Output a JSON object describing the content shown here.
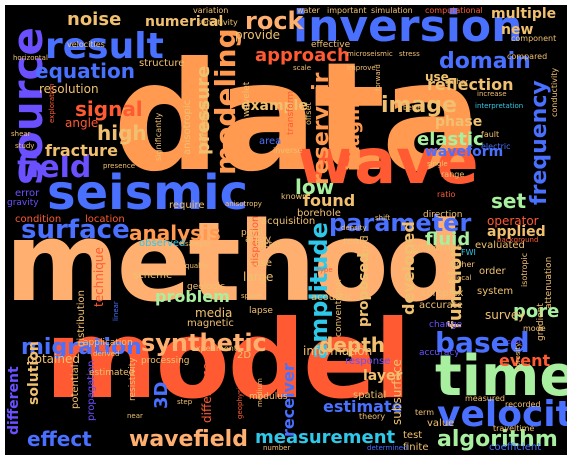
{
  "background": "#000000",
  "palette": {
    "orange": "#ff9a50",
    "peach": "#ffb070",
    "red": "#ff5a32",
    "purple": "#6a50ff",
    "blue": "#4a70ff",
    "cyan": "#30c8e8",
    "teal": "#40d8c8",
    "green": "#a8f0a0",
    "gold": "#f0c070",
    "deepred": "#e02810"
  },
  "words": [
    {
      "text": "data",
      "color": "#ff9a50",
      "weight": 1.0
    },
    {
      "text": "method",
      "color": "#ffb070",
      "weight": 0.98
    },
    {
      "text": "model",
      "color": "#ff5a32",
      "weight": 0.95
    },
    {
      "text": "wave",
      "color": "#ff5a32",
      "weight": 0.72
    },
    {
      "text": "seismic",
      "color": "#4a70ff",
      "weight": 0.7
    },
    {
      "text": "inversion",
      "color": "#4a70ff",
      "weight": 0.62
    },
    {
      "text": "time",
      "color": "#a8f0a0",
      "weight": 0.62
    },
    {
      "text": "source",
      "color": "#6a50ff",
      "weight": 0.55
    },
    {
      "text": "result",
      "color": "#4a70ff",
      "weight": 0.5
    },
    {
      "text": "velocity",
      "color": "#4a70ff",
      "weight": 0.45
    },
    {
      "text": "field",
      "color": "#6a50ff",
      "weight": 0.42
    },
    {
      "text": "modeling",
      "color": "#ff9a50",
      "weight": 0.4
    },
    {
      "text": "surface",
      "color": "#4a70ff",
      "weight": 0.38
    },
    {
      "text": "parameter",
      "color": "#4a70ff",
      "weight": 0.36
    },
    {
      "text": "amplitude",
      "color": "#30c8e8",
      "weight": 0.36
    },
    {
      "text": "synthetic",
      "color": "#ffb070",
      "weight": 0.35
    },
    {
      "text": "based",
      "color": "#4a70ff",
      "weight": 0.35
    },
    {
      "text": "wavefield",
      "color": "#ffb070",
      "weight": 0.32
    },
    {
      "text": "measurement",
      "color": "#30c8e8",
      "weight": 0.32
    },
    {
      "text": "algorithm",
      "color": "#a8f0a0",
      "weight": 0.32
    },
    {
      "text": "frequency",
      "color": "#4a70ff",
      "weight": 0.32
    },
    {
      "text": "migration",
      "color": "#4a70ff",
      "weight": 0.3
    },
    {
      "text": "rock",
      "color": "#ffb070",
      "weight": 0.3
    },
    {
      "text": "domain",
      "color": "#4a70ff",
      "weight": 0.3
    },
    {
      "text": "equation",
      "color": "#4a70ff",
      "weight": 0.3
    },
    {
      "text": "approach",
      "color": "#ff5a32",
      "weight": 0.28
    },
    {
      "text": "image",
      "color": "#f0c070",
      "weight": 0.28
    },
    {
      "text": "reservoir",
      "color": "#ff9a50",
      "weight": 0.28
    },
    {
      "text": "signal",
      "color": "#ff5a32",
      "weight": 0.26
    },
    {
      "text": "high",
      "color": "#f0c070",
      "weight": 0.26
    },
    {
      "text": "imaging",
      "color": "#ff9a50",
      "weight": 0.26
    },
    {
      "text": "analysis",
      "color": "#ff9a50",
      "weight": 0.26
    },
    {
      "text": "low",
      "color": "#a8f0a0",
      "weight": 0.26
    },
    {
      "text": "set",
      "color": "#a8f0a0",
      "weight": 0.26
    },
    {
      "text": "depth",
      "color": "#f0c070",
      "weight": 0.26
    },
    {
      "text": "effect",
      "color": "#4a70ff",
      "weight": 0.26
    },
    {
      "text": "noise",
      "color": "#f0c070",
      "weight": 0.24
    },
    {
      "text": "reflection",
      "color": "#f0c070",
      "weight": 0.24
    },
    {
      "text": "elastic",
      "color": "#a8f0a0",
      "weight": 0.24
    },
    {
      "text": "fracture",
      "color": "#f0c070",
      "weight": 0.24
    },
    {
      "text": "pressure",
      "color": "#f0c070",
      "weight": 0.24
    },
    {
      "text": "pore",
      "color": "#a8f0a0",
      "weight": 0.24
    },
    {
      "text": "fluid",
      "color": "#a8f0a0",
      "weight": 0.24
    },
    {
      "text": "function",
      "color": "#f0c070",
      "weight": 0.24
    },
    {
      "text": "problem",
      "color": "#a8f0a0",
      "weight": 0.24
    },
    {
      "text": "receiver",
      "color": "#4a70ff",
      "weight": 0.24
    },
    {
      "text": "estimate",
      "color": "#4a70ff",
      "weight": 0.24
    },
    {
      "text": "developed",
      "color": "#f0c070",
      "weight": 0.24
    },
    {
      "text": "found",
      "color": "#f0c070",
      "weight": 0.22
    },
    {
      "text": "event",
      "color": "#ff5a32",
      "weight": 0.22
    },
    {
      "text": "3D",
      "color": "#4a70ff",
      "weight": 0.22
    },
    {
      "text": "example",
      "color": "#f0c070",
      "weight": 0.2
    },
    {
      "text": "phase",
      "color": "#f0c070",
      "weight": 0.2
    },
    {
      "text": "waveform",
      "color": "#4a70ff",
      "weight": 0.2
    },
    {
      "text": "resolution",
      "color": "#f0c070",
      "weight": 0.2
    },
    {
      "text": "numerical",
      "color": "#f0c070",
      "weight": 0.2
    },
    {
      "text": "new",
      "color": "#f0c070",
      "weight": 0.2
    },
    {
      "text": "multiple",
      "color": "#f0c070",
      "weight": 0.2
    },
    {
      "text": "use",
      "color": "#f0c070",
      "weight": 0.2
    },
    {
      "text": "provide",
      "color": "#f0c070",
      "weight": 0.18
    },
    {
      "text": "layer",
      "color": "#f0c070",
      "weight": 0.18
    },
    {
      "text": "different",
      "color": "#6a50ff",
      "weight": 0.2
    },
    {
      "text": "solution",
      "color": "#f0c070",
      "weight": 0.2
    },
    {
      "text": "obtained",
      "color": "#f0c070",
      "weight": 0.18
    },
    {
      "text": "information",
      "color": "#f0c070",
      "weight": 0.18
    },
    {
      "text": "applied",
      "color": "#f0c070",
      "weight": 0.2
    },
    {
      "text": "survey",
      "color": "#f0c070",
      "weight": 0.18
    },
    {
      "text": "proposed",
      "color": "#f0c070",
      "weight": 0.2
    },
    {
      "text": "subsurface",
      "color": "#f0c070",
      "weight": 0.18
    },
    {
      "text": "technique",
      "color": "#ff5a32",
      "weight": 0.16
    },
    {
      "text": "media",
      "color": "#f0c070",
      "weight": 0.18
    },
    {
      "text": "difference",
      "color": "#ff5a32",
      "weight": 0.16
    },
    {
      "text": "operator",
      "color": "#ff5a32",
      "weight": 0.16
    },
    {
      "text": "structure",
      "color": "#f0c070",
      "weight": 0.14
    },
    {
      "text": "scheme",
      "color": "#f0c070",
      "weight": 0.14
    },
    {
      "text": "system",
      "color": "#f0c070",
      "weight": 0.14
    },
    {
      "text": "order",
      "color": "#f0c070",
      "weight": 0.14
    },
    {
      "text": "effective",
      "color": "#f0c070",
      "weight": 0.12
    },
    {
      "text": "dispersion",
      "color": "#ff5a32",
      "weight": 0.12
    },
    {
      "text": "acquisition",
      "color": "#f0c070",
      "weight": 0.12
    },
    {
      "text": "observed",
      "color": "#30c8e8",
      "weight": 0.12
    },
    {
      "text": "condition",
      "color": "#ff5a32",
      "weight": 0.12
    },
    {
      "text": "error",
      "color": "#6a50ff",
      "weight": 0.12
    },
    {
      "text": "location",
      "color": "#ff5a32",
      "weight": 0.12
    },
    {
      "text": "distribution",
      "color": "#f0c070",
      "weight": 0.12
    },
    {
      "text": "potential",
      "color": "#f0c070",
      "weight": 0.12
    },
    {
      "text": "propagation",
      "color": "#6a50ff",
      "weight": 0.12
    },
    {
      "text": "angle",
      "color": "#ff5a32",
      "weight": 0.14
    },
    {
      "text": "gravity",
      "color": "#6a50ff",
      "weight": 0.1
    },
    {
      "text": "anisotropic",
      "color": "#f0c070",
      "weight": 0.1
    },
    {
      "text": "formation",
      "color": "#f0c070",
      "weight": 0.1
    },
    {
      "text": "wavelet",
      "color": "#f0c070",
      "weight": 0.1
    },
    {
      "text": "transform",
      "color": "#ff5a32",
      "weight": 0.1
    },
    {
      "text": "significantly",
      "color": "#f0c070",
      "weight": 0.09
    },
    {
      "text": "require",
      "color": "#f0c070",
      "weight": 0.1
    },
    {
      "text": "magnetic",
      "color": "#f0c070",
      "weight": 0.1
    },
    {
      "text": "geologic",
      "color": "#f0c070",
      "weight": 0.1
    },
    {
      "text": "estimated",
      "color": "#f0c070",
      "weight": 0.09
    },
    {
      "text": "application",
      "color": "#f0c070",
      "weight": 0.09
    },
    {
      "text": "processing",
      "color": "#f0c070",
      "weight": 0.09
    },
    {
      "text": "experiment",
      "color": "#f0c070",
      "weight": 0.09
    },
    {
      "text": "resistivity",
      "color": "#f0c070",
      "weight": 0.09
    },
    {
      "text": "modulus",
      "color": "#f0c070",
      "weight": 0.09
    },
    {
      "text": "spatial",
      "color": "#f0c070",
      "weight": 0.1
    },
    {
      "text": "conventional",
      "color": "#f0c070",
      "weight": 0.09
    },
    {
      "text": "accurate",
      "color": "#f0c070",
      "weight": 0.1
    },
    {
      "text": "complex",
      "color": "#f0c070",
      "weight": 0.1
    },
    {
      "text": "acoustic",
      "color": "#f0c070",
      "weight": 0.1
    },
    {
      "text": "finite",
      "color": "#f0c070",
      "weight": 0.1
    },
    {
      "text": "test",
      "color": "#f0c070",
      "weight": 0.1
    },
    {
      "text": "value",
      "color": "#f0c070",
      "weight": 0.1
    },
    {
      "text": "response",
      "color": "#6a50ff",
      "weight": 0.1
    },
    {
      "text": "accuracy",
      "color": "#6a50ff",
      "weight": 0.09
    },
    {
      "text": "change",
      "color": "#6a50ff",
      "weight": 0.09
    },
    {
      "text": "theory",
      "color": "#f0c070",
      "weight": 0.08
    },
    {
      "text": "term",
      "color": "#f0c070",
      "weight": 0.08
    },
    {
      "text": "coefficient",
      "color": "#4a70ff",
      "weight": 0.09
    },
    {
      "text": "traveltime",
      "color": "#f0c070",
      "weight": 0.08
    },
    {
      "text": "measured",
      "color": "#f0c070",
      "weight": 0.08
    },
    {
      "text": "recorded",
      "color": "#f0c070",
      "weight": 0.08
    },
    {
      "text": "2D",
      "color": "#f0c070",
      "weight": 0.1
    },
    {
      "text": "real",
      "color": "#f0c070",
      "weight": 0.1
    },
    {
      "text": "grid",
      "color": "#f0c070",
      "weight": 0.1
    },
    {
      "text": "array",
      "color": "#f0c070",
      "weight": 0.1
    },
    {
      "text": "borehole",
      "color": "#f0c070",
      "weight": 0.1
    },
    {
      "text": "properties",
      "color": "#f0c070",
      "weight": 0.1
    },
    {
      "text": "evaluated",
      "color": "#f0c070",
      "weight": 0.1
    },
    {
      "text": "lapse",
      "color": "#f0c070",
      "weight": 0.09
    },
    {
      "text": "large",
      "color": "#f0c070",
      "weight": 0.12
    },
    {
      "text": "case",
      "color": "#f0c070",
      "weight": 0.1
    },
    {
      "text": "point",
      "color": "#f0c070",
      "weight": 0.09
    },
    {
      "text": "factor",
      "color": "#f0c070",
      "weight": 0.09
    },
    {
      "text": "area",
      "color": "#4a70ff",
      "weight": 0.1
    },
    {
      "text": "inverse",
      "color": "#f0c070",
      "weight": 0.08
    },
    {
      "text": "offset",
      "color": "#f0c070",
      "weight": 0.08
    },
    {
      "text": "known",
      "color": "#f0c070",
      "weight": 0.08
    },
    {
      "text": "density",
      "color": "#f0c070",
      "weight": 0.07
    },
    {
      "text": "shift",
      "color": "#f0c070",
      "weight": 0.07
    },
    {
      "text": "direction",
      "color": "#f0c070",
      "weight": 0.09
    },
    {
      "text": "range",
      "color": "#f0c070",
      "weight": 0.08
    },
    {
      "text": "ratio",
      "color": "#ff5a32",
      "weight": 0.08
    },
    {
      "text": "fault",
      "color": "#f0c070",
      "weight": 0.08
    },
    {
      "text": "electric",
      "color": "#4a70ff",
      "weight": 0.08
    },
    {
      "text": "gradient",
      "color": "#f0c070",
      "weight": 0.09
    },
    {
      "text": "attenuation",
      "color": "#f0c070",
      "weight": 0.09
    },
    {
      "text": "isotropic",
      "color": "#f0c070",
      "weight": 0.08
    },
    {
      "text": "background",
      "color": "#ff5a32",
      "weight": 0.07
    },
    {
      "text": "FWI",
      "color": "#30c8e8",
      "weight": 0.08
    },
    {
      "text": "mode",
      "color": "#f0c070",
      "weight": 0.08
    },
    {
      "text": "higher",
      "color": "#f0c070",
      "weight": 0.08
    },
    {
      "text": "local",
      "color": "#f0c070",
      "weight": 0.07
    },
    {
      "text": "cost",
      "color": "#6a50ff",
      "weight": 0.07
    },
    {
      "text": "porosity",
      "color": "#f0c070",
      "weight": 0.07
    },
    {
      "text": "conductivity",
      "color": "#f0c070",
      "weight": 0.08
    },
    {
      "text": "velocities",
      "color": "#f0c070",
      "weight": 0.08
    },
    {
      "text": "horizontal",
      "color": "#f0c070",
      "weight": 0.07
    },
    {
      "text": "variation",
      "color": "#f0c070",
      "weight": 0.08
    },
    {
      "text": "sensitivity",
      "color": "#f0c070",
      "weight": 0.08
    },
    {
      "text": "water",
      "color": "#f0c070",
      "weight": 0.08
    },
    {
      "text": "important",
      "color": "#f0c070",
      "weight": 0.08
    },
    {
      "text": "simulation",
      "color": "#f0c070",
      "weight": 0.08
    },
    {
      "text": "computational",
      "color": "#ff5a32",
      "weight": 0.08
    },
    {
      "text": "component",
      "color": "#f0c070",
      "weight": 0.08
    },
    {
      "text": "compared",
      "color": "#f0c070",
      "weight": 0.08
    },
    {
      "text": "microseismic",
      "color": "#f0c070",
      "weight": 0.07
    },
    {
      "text": "stress",
      "color": "#f0c070",
      "weight": 0.07
    },
    {
      "text": "scale",
      "color": "#f0c070",
      "weight": 0.07
    },
    {
      "text": "improve",
      "color": "#f0c070",
      "weight": 0.07
    },
    {
      "text": "forward",
      "color": "#f0c070",
      "weight": 0.07
    },
    {
      "text": "gather",
      "color": "#f0c070",
      "weight": 0.07
    },
    {
      "text": "increase",
      "color": "#f0c070",
      "weight": 0.07
    },
    {
      "text": "better",
      "color": "#f0c070",
      "weight": 0.07
    },
    {
      "text": "interpretation",
      "color": "#30c8e8",
      "weight": 0.07
    },
    {
      "text": "exploration",
      "color": "#ff5a32",
      "weight": 0.07
    },
    {
      "text": "shear",
      "color": "#f0c070",
      "weight": 0.07
    },
    {
      "text": "study",
      "color": "#f0c070",
      "weight": 0.07
    },
    {
      "text": "presence",
      "color": "#f0c070",
      "weight": 0.07
    },
    {
      "text": "single",
      "color": "#f0c070",
      "weight": 0.07
    },
    {
      "text": "anisotropy",
      "color": "#f0c070",
      "weight": 0.07
    },
    {
      "text": "sample",
      "color": "#f0c070",
      "weight": 0.07
    },
    {
      "text": "quality",
      "color": "#f0c070",
      "weight": 0.07
    },
    {
      "text": "space",
      "color": "#f0c070",
      "weight": 0.07
    },
    {
      "text": "type",
      "color": "#ff5a32",
      "weight": 0.07
    },
    {
      "text": "derived",
      "color": "#f0c070",
      "weight": 0.07
    },
    {
      "text": "linear",
      "color": "#4a70ff",
      "weight": 0.07
    },
    {
      "text": "near",
      "color": "#f0c070",
      "weight": 0.07
    },
    {
      "text": "step",
      "color": "#f0c070",
      "weight": 0.07
    },
    {
      "text": "medium",
      "color": "#f0c070",
      "weight": 0.07
    },
    {
      "text": "geophysical",
      "color": "#ff5a32",
      "weight": 0.07
    },
    {
      "text": "number",
      "color": "#f0c070",
      "weight": 0.07
    },
    {
      "text": "determined",
      "color": "#4a70ff",
      "weight": 0.07
    }
  ]
}
